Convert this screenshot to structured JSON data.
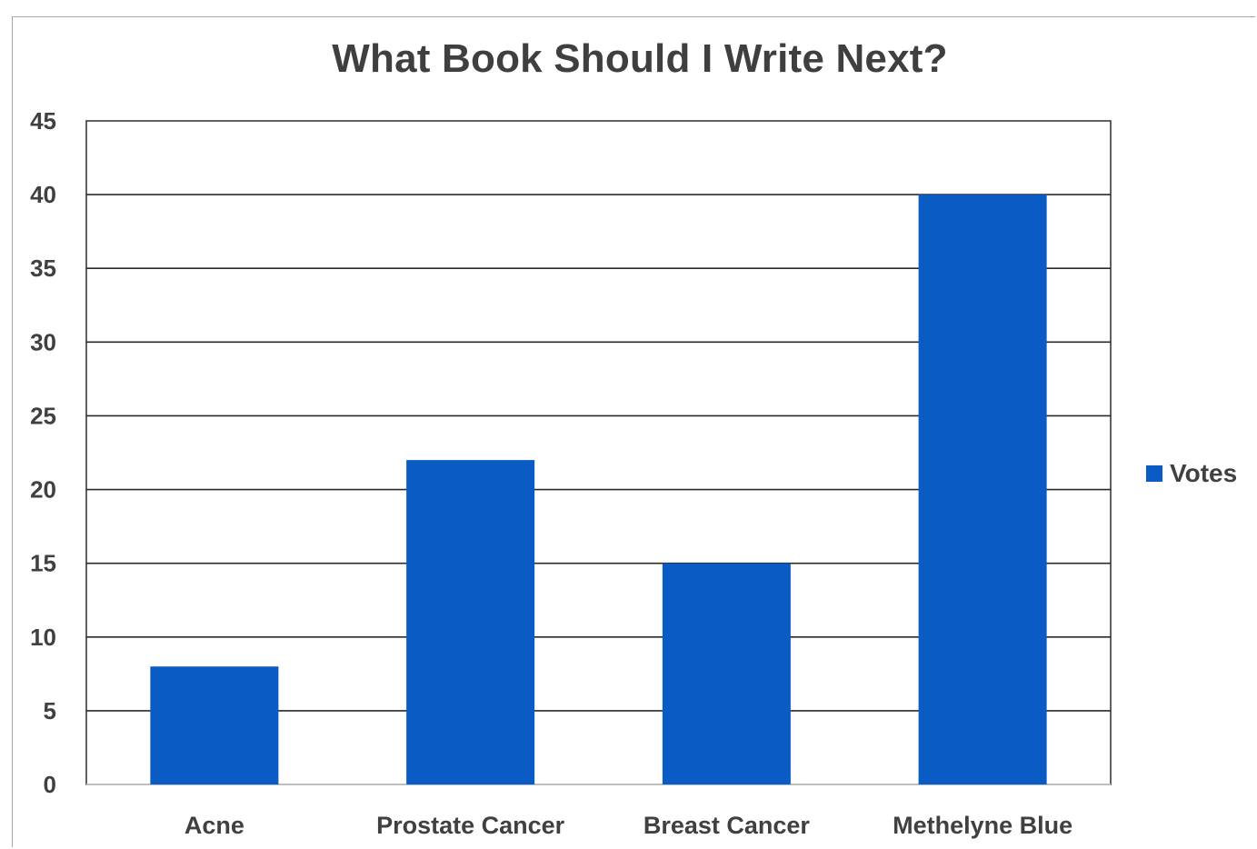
{
  "chart_data": {
    "type": "bar",
    "title": "What Book Should I Write Next?",
    "categories": [
      "Acne",
      "Prostate Cancer",
      "Breast Cancer",
      "Methelyne Blue"
    ],
    "series": [
      {
        "name": "Votes",
        "values": [
          8,
          22,
          15,
          40
        ],
        "color": "#0a5bc4"
      }
    ],
    "ylim": [
      0,
      45
    ],
    "yticks": [
      0,
      5,
      10,
      15,
      20,
      25,
      30,
      35,
      40,
      45
    ],
    "grid": true,
    "legend": "right"
  }
}
